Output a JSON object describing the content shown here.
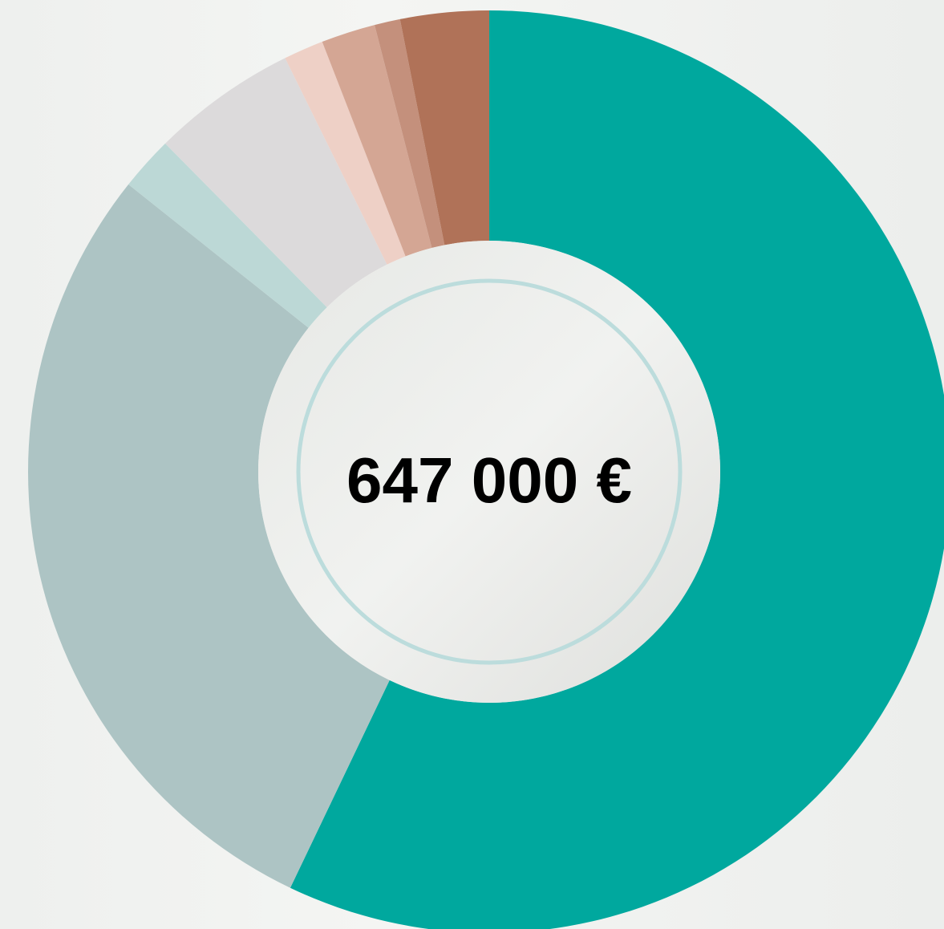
{
  "chart_data": {
    "type": "pie",
    "center_label": "647 000 €",
    "values": [
      57.1,
      28.6,
      1.9,
      5.1,
      1.4,
      1.9,
      0.9,
      3.1
    ],
    "colors": [
      "#00a89e",
      "#adc4c4",
      "#bcd8d6",
      "#dcdadb",
      "#eed0c6",
      "#d4a694",
      "#c4907c",
      "#b07258"
    ]
  }
}
